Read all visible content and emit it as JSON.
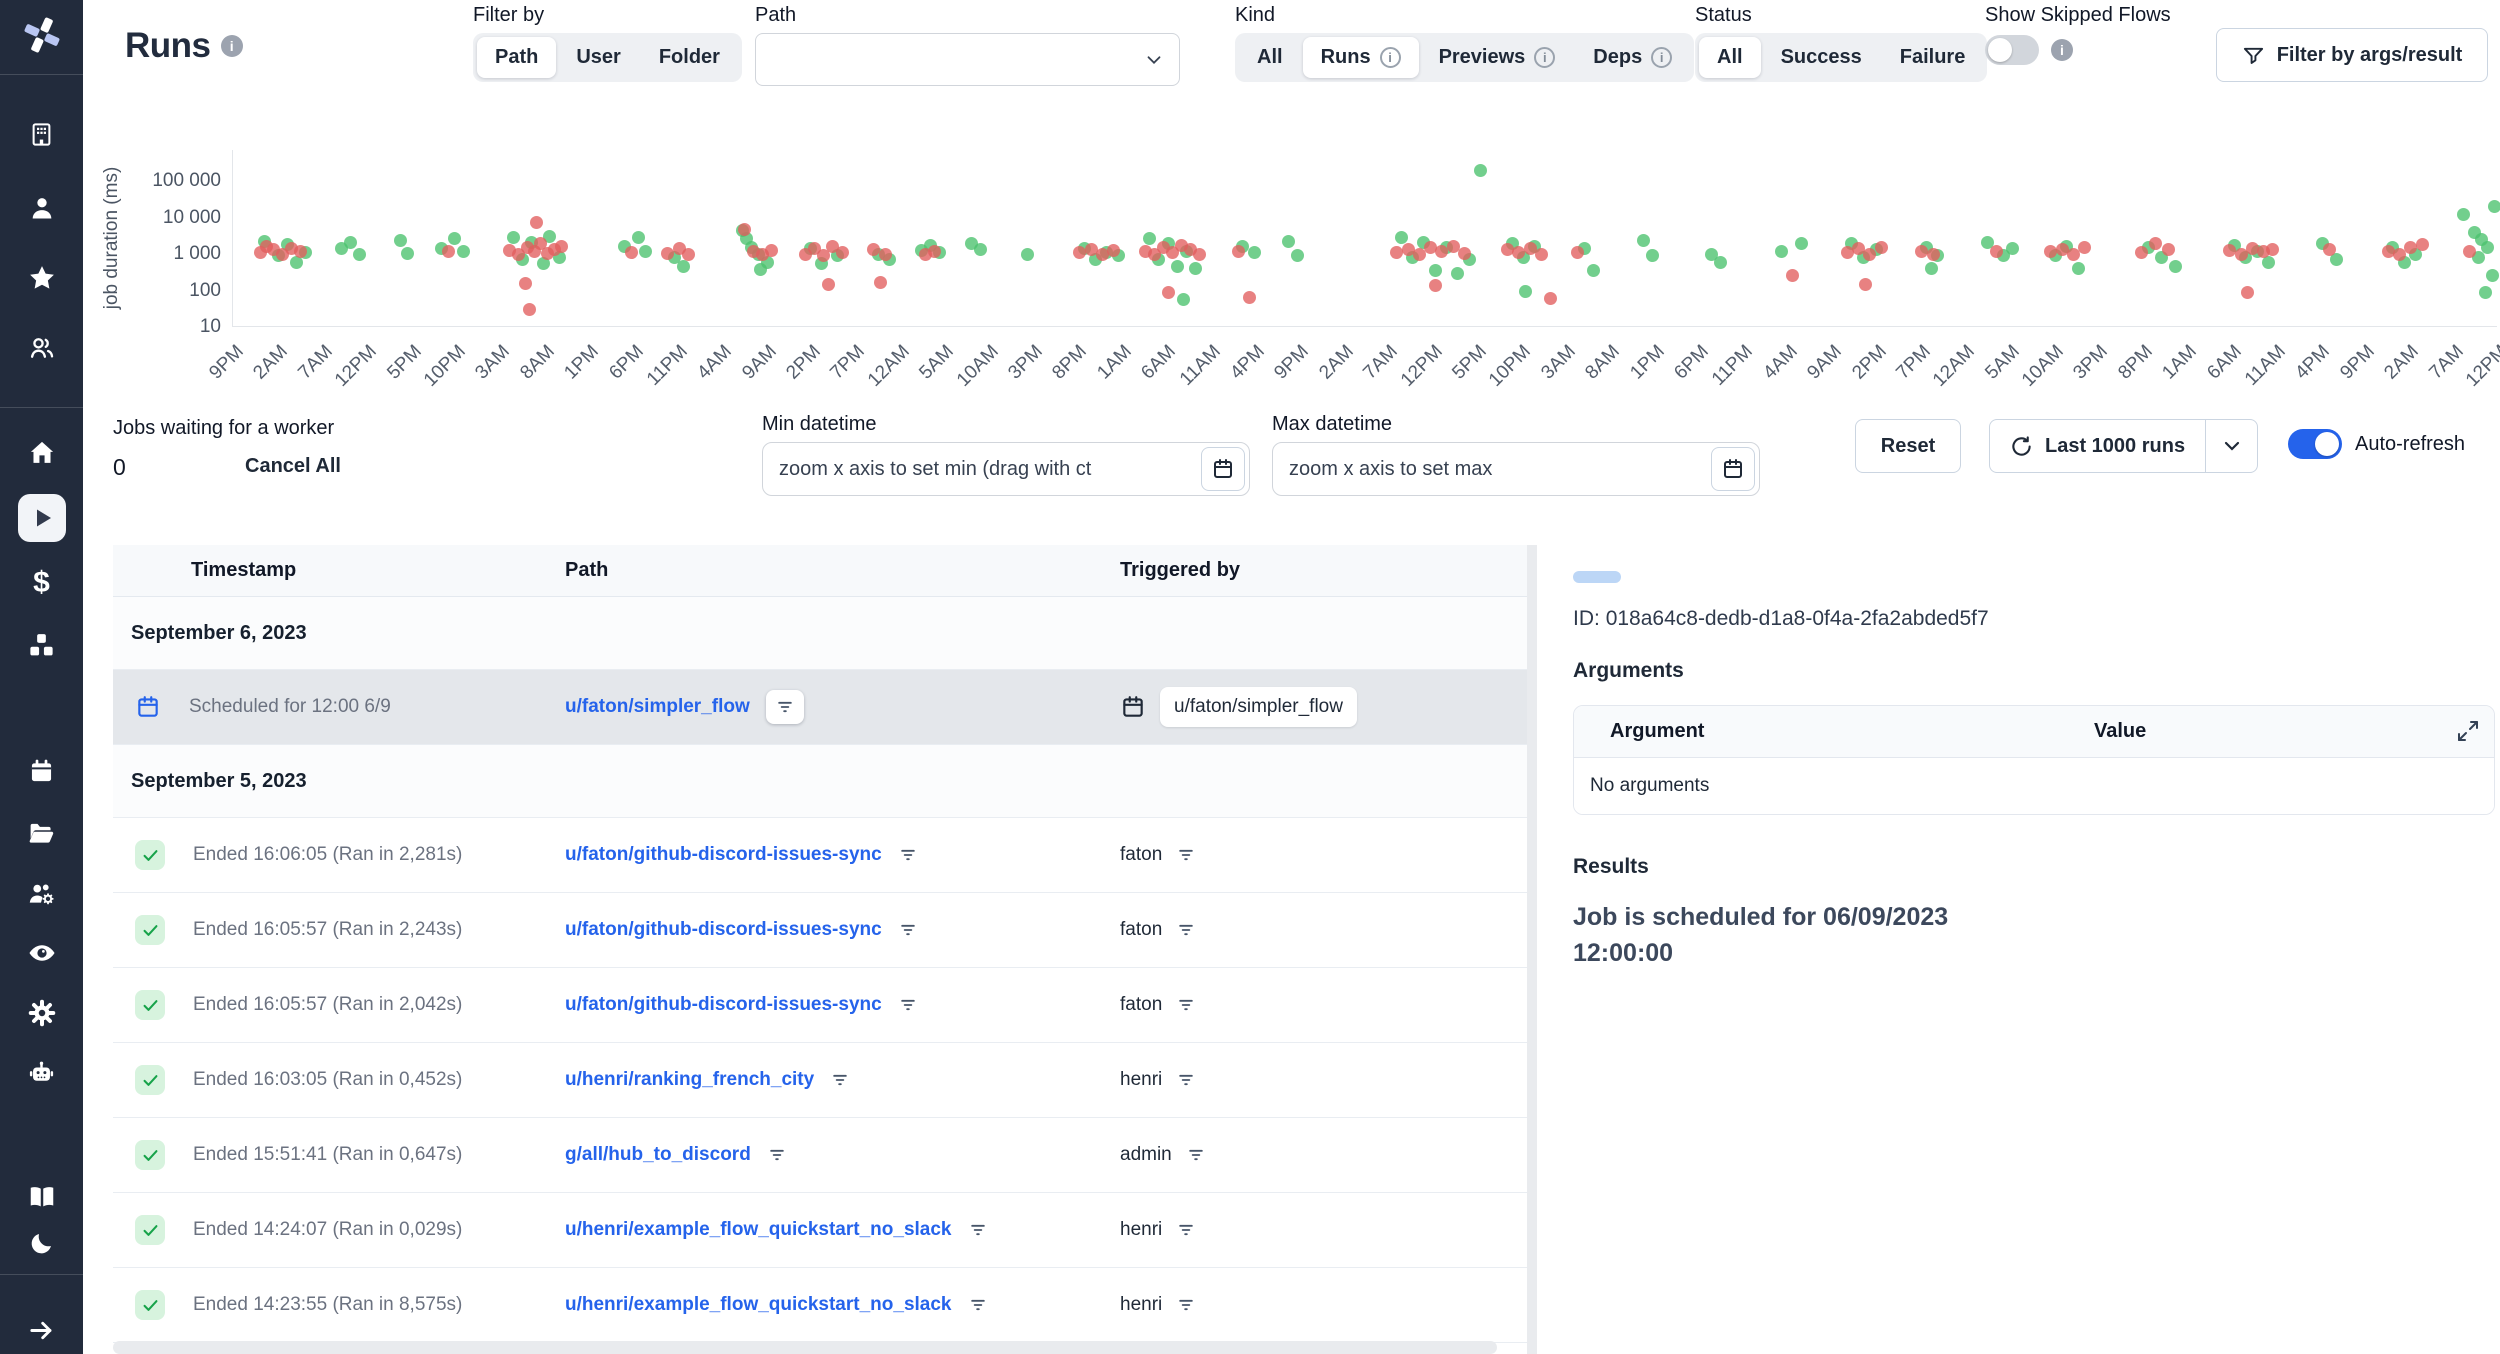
{
  "colors": {
    "accent": "#2563eb",
    "success_dot": "#4ac26d",
    "failure_dot": "#e25e5e",
    "sidebar": "#222b3c",
    "link": "#2563eb"
  },
  "sidebar": {
    "active_item": "runs",
    "icons": [
      "windmill-logo",
      "building",
      "user",
      "star",
      "user-group",
      "home",
      "play",
      "dollar-sign",
      "boxes",
      "calendar",
      "folder-open",
      "users-gear",
      "eye",
      "gear",
      "robot",
      "book",
      "moon",
      "arrow-right"
    ]
  },
  "header": {
    "title": "Runs",
    "filter_by": {
      "label": "Filter by",
      "options": [
        "Path",
        "User",
        "Folder"
      ],
      "selected": "Path"
    },
    "path_select": {
      "label": "Path",
      "value": ""
    },
    "kind": {
      "label": "Kind",
      "options": [
        "All",
        "Runs",
        "Previews",
        "Deps"
      ],
      "selected": "Runs"
    },
    "status": {
      "label": "Status",
      "options": [
        "All",
        "Success",
        "Failure"
      ],
      "selected": "All"
    },
    "show_skipped": {
      "label": "Show Skipped Flows",
      "enabled": false
    },
    "args_filter": {
      "label": "Filter by args/result"
    }
  },
  "chart_data": {
    "type": "scatter",
    "ylabel": "job duration (ms)",
    "yscale": "log",
    "yticks": [
      10,
      100,
      1000,
      10000,
      100000
    ],
    "ytick_labels": [
      "10",
      "100",
      "1 000",
      "10 000",
      "100 000"
    ],
    "ylim": [
      10,
      700000
    ],
    "x_unit": "percent_of_time_axis",
    "xtick_labels": [
      "9PM",
      "2AM",
      "7AM",
      "12PM",
      "5PM",
      "10PM",
      "3AM",
      "8AM",
      "1PM",
      "6PM",
      "11PM",
      "4AM",
      "9AM",
      "2PM",
      "7PM",
      "12AM",
      "5AM",
      "10AM",
      "3PM",
      "8PM",
      "1AM",
      "6AM",
      "11AM",
      "4PM",
      "9PM",
      "2AM",
      "7AM",
      "12PM",
      "5PM",
      "10PM",
      "3AM",
      "8AM",
      "1PM",
      "6PM",
      "11PM",
      "4AM",
      "9AM",
      "2PM",
      "7PM",
      "12AM",
      "5AM",
      "10AM",
      "3PM",
      "8PM",
      "1AM",
      "6AM",
      "11AM",
      "4PM",
      "9PM",
      "2AM",
      "7AM",
      "12PM"
    ],
    "series": [
      {
        "name": "success",
        "color": "#4ac26d",
        "points": [
          [
            1.4,
            2200
          ],
          [
            2.0,
            900
          ],
          [
            2.4,
            1800
          ],
          [
            2.8,
            600
          ],
          [
            3.2,
            1100
          ],
          [
            4.8,
            1400
          ],
          [
            5.2,
            2100
          ],
          [
            5.6,
            1000
          ],
          [
            7.4,
            2400
          ],
          [
            7.7,
            1050
          ],
          [
            9.2,
            1400
          ],
          [
            9.8,
            2600
          ],
          [
            10.2,
            1200
          ],
          [
            12.4,
            2800
          ],
          [
            12.8,
            700
          ],
          [
            13.2,
            2100
          ],
          [
            13.7,
            550
          ],
          [
            14.0,
            3000
          ],
          [
            14.4,
            800
          ],
          [
            17.3,
            1600
          ],
          [
            17.9,
            2800
          ],
          [
            18.2,
            1200
          ],
          [
            19.5,
            800
          ],
          [
            19.9,
            450
          ],
          [
            22.5,
            4500
          ],
          [
            22.7,
            2600
          ],
          [
            22.9,
            1500
          ],
          [
            23.2,
            1000
          ],
          [
            23.6,
            600
          ],
          [
            23.3,
            380
          ],
          [
            25.5,
            1400
          ],
          [
            26.0,
            550
          ],
          [
            26.7,
            900
          ],
          [
            28.5,
            950
          ],
          [
            29.0,
            700
          ],
          [
            30.4,
            1250
          ],
          [
            30.8,
            1700
          ],
          [
            31.2,
            1100
          ],
          [
            32.6,
            1900
          ],
          [
            33.0,
            1300
          ],
          [
            35.1,
            1000
          ],
          [
            37.6,
            1400
          ],
          [
            38.1,
            700
          ],
          [
            38.6,
            1100
          ],
          [
            39.1,
            900
          ],
          [
            40.5,
            2600
          ],
          [
            40.9,
            700
          ],
          [
            41.3,
            1900
          ],
          [
            41.7,
            450
          ],
          [
            42.1,
            1200
          ],
          [
            42.5,
            400
          ],
          [
            42.0,
            55
          ],
          [
            44.6,
            1600
          ],
          [
            45.1,
            1100
          ],
          [
            46.6,
            2200
          ],
          [
            47.0,
            900
          ],
          [
            51.6,
            2800
          ],
          [
            52.1,
            800
          ],
          [
            52.6,
            2100
          ],
          [
            53.1,
            350
          ],
          [
            53.6,
            1500
          ],
          [
            54.1,
            300
          ],
          [
            54.6,
            700
          ],
          [
            55.1,
            200000
          ],
          [
            56.5,
            2000
          ],
          [
            57.0,
            800
          ],
          [
            57.5,
            1600
          ],
          [
            57.1,
            95
          ],
          [
            59.7,
            1400
          ],
          [
            60.1,
            350
          ],
          [
            62.3,
            2300
          ],
          [
            62.7,
            900
          ],
          [
            65.3,
            1000
          ],
          [
            65.7,
            600
          ],
          [
            68.4,
            1200
          ],
          [
            69.3,
            1900
          ],
          [
            71.5,
            2000
          ],
          [
            72.0,
            800
          ],
          [
            72.6,
            1300
          ],
          [
            74.8,
            1500
          ],
          [
            75.3,
            900
          ],
          [
            75.0,
            400
          ],
          [
            77.5,
            2100
          ],
          [
            78.2,
            900
          ],
          [
            78.6,
            1400
          ],
          [
            80.5,
            900
          ],
          [
            81.0,
            1600
          ],
          [
            81.5,
            400
          ],
          [
            84.6,
            1500
          ],
          [
            85.2,
            800
          ],
          [
            85.8,
            450
          ],
          [
            88.4,
            1700
          ],
          [
            88.9,
            800
          ],
          [
            89.4,
            1200
          ],
          [
            89.9,
            600
          ],
          [
            92.3,
            2000
          ],
          [
            92.9,
            700
          ],
          [
            95.4,
            1500
          ],
          [
            95.9,
            600
          ],
          [
            96.4,
            1000
          ],
          [
            98.5,
            12000
          ],
          [
            99.0,
            4000
          ],
          [
            99.3,
            2500
          ],
          [
            99.6,
            1500
          ],
          [
            99.2,
            800
          ],
          [
            99.8,
            250
          ],
          [
            99.5,
            90
          ],
          [
            99.9,
            20000
          ]
        ]
      },
      {
        "name": "failure",
        "color": "#e25e5e",
        "points": [
          [
            1.2,
            1100
          ],
          [
            1.8,
            1300
          ],
          [
            2.2,
            950
          ],
          [
            2.6,
            1400
          ],
          [
            3.0,
            1200
          ],
          [
            1.5,
            1600
          ],
          [
            9.5,
            1150
          ],
          [
            12.2,
            1250
          ],
          [
            12.6,
            980
          ],
          [
            13.0,
            1500
          ],
          [
            13.3,
            1150
          ],
          [
            13.6,
            1900
          ],
          [
            13.9,
            1050
          ],
          [
            14.2,
            1300
          ],
          [
            14.5,
            1600
          ],
          [
            13.4,
            7500
          ],
          [
            12.9,
            160
          ],
          [
            13.1,
            30
          ],
          [
            17.6,
            1100
          ],
          [
            19.2,
            1050
          ],
          [
            19.7,
            1400
          ],
          [
            20.1,
            1000
          ],
          [
            22.6,
            4800
          ],
          [
            23.0,
            1150
          ],
          [
            23.4,
            1000
          ],
          [
            23.8,
            1250
          ],
          [
            25.3,
            1000
          ],
          [
            25.7,
            1450
          ],
          [
            26.1,
            900
          ],
          [
            26.5,
            1600
          ],
          [
            26.9,
            1100
          ],
          [
            26.3,
            150
          ],
          [
            28.3,
            1300
          ],
          [
            28.8,
            1000
          ],
          [
            28.6,
            170
          ],
          [
            30.6,
            1000
          ],
          [
            31.0,
            1150
          ],
          [
            37.4,
            1100
          ],
          [
            37.9,
            1350
          ],
          [
            38.4,
            1000
          ],
          [
            38.9,
            1250
          ],
          [
            40.3,
            1200
          ],
          [
            40.7,
            1000
          ],
          [
            41.1,
            1500
          ],
          [
            41.5,
            1100
          ],
          [
            41.9,
            1750
          ],
          [
            42.3,
            1300
          ],
          [
            42.7,
            1000
          ],
          [
            41.3,
            90
          ],
          [
            44.4,
            1200
          ],
          [
            44.9,
            65
          ],
          [
            51.4,
            1100
          ],
          [
            51.9,
            1300
          ],
          [
            52.4,
            1000
          ],
          [
            52.9,
            1500
          ],
          [
            53.4,
            1200
          ],
          [
            53.9,
            1600
          ],
          [
            54.4,
            1050
          ],
          [
            53.1,
            140
          ],
          [
            56.3,
            1300
          ],
          [
            56.8,
            1100
          ],
          [
            57.3,
            1450
          ],
          [
            57.8,
            1000
          ],
          [
            58.2,
            60
          ],
          [
            59.4,
            1100
          ],
          [
            68.9,
            250
          ],
          [
            71.3,
            1100
          ],
          [
            71.8,
            1400
          ],
          [
            72.3,
            1000
          ],
          [
            72.8,
            1500
          ],
          [
            72.1,
            150
          ],
          [
            74.6,
            1200
          ],
          [
            75.1,
            1000
          ],
          [
            77.9,
            1200
          ],
          [
            80.3,
            1150
          ],
          [
            80.8,
            1350
          ],
          [
            81.3,
            1000
          ],
          [
            81.8,
            1500
          ],
          [
            84.3,
            1100
          ],
          [
            84.9,
            2000
          ],
          [
            85.5,
            1300
          ],
          [
            88.2,
            1250
          ],
          [
            88.7,
            1000
          ],
          [
            89.2,
            1400
          ],
          [
            89.7,
            1150
          ],
          [
            90.1,
            1300
          ],
          [
            89.0,
            90
          ],
          [
            92.6,
            1300
          ],
          [
            95.2,
            1200
          ],
          [
            95.7,
            1000
          ],
          [
            96.2,
            1500
          ],
          [
            96.7,
            1800
          ],
          [
            98.8,
            1200
          ]
        ]
      }
    ]
  },
  "controls": {
    "jobs_waiting": {
      "label": "Jobs waiting for a worker",
      "count": "0",
      "cancel_label": "Cancel All"
    },
    "min_datetime": {
      "label": "Min datetime",
      "value": "zoom x axis to set min (drag with ct"
    },
    "max_datetime": {
      "label": "Max datetime",
      "value": "zoom x axis to set max"
    },
    "reset_label": "Reset",
    "runs_limit": {
      "label": "Last 1000 runs"
    },
    "auto_refresh": {
      "label": "Auto-refresh",
      "enabled": true
    }
  },
  "table": {
    "columns": [
      "Timestamp",
      "Path",
      "Triggered by"
    ],
    "rows": [
      {
        "type": "date",
        "label": "September 6, 2023"
      },
      {
        "type": "scheduled",
        "selected": true,
        "timestamp": "Scheduled for 12:00 6/9",
        "path": "u/faton/simpler_flow",
        "triggered_by": "u/faton/simpler_flow"
      },
      {
        "type": "date",
        "label": "September 5, 2023"
      },
      {
        "type": "run",
        "status": "success",
        "timestamp": "Ended 16:06:05 (Ran in 2,281s)",
        "path": "u/faton/github-discord-issues-sync",
        "triggered_by": "faton"
      },
      {
        "type": "run",
        "status": "success",
        "timestamp": "Ended 16:05:57 (Ran in 2,243s)",
        "path": "u/faton/github-discord-issues-sync",
        "triggered_by": "faton"
      },
      {
        "type": "run",
        "status": "success",
        "timestamp": "Ended 16:05:57 (Ran in 2,042s)",
        "path": "u/faton/github-discord-issues-sync",
        "triggered_by": "faton"
      },
      {
        "type": "run",
        "status": "success",
        "timestamp": "Ended 16:03:05 (Ran in 0,452s)",
        "path": "u/henri/ranking_french_city",
        "triggered_by": "henri"
      },
      {
        "type": "run",
        "status": "success",
        "timestamp": "Ended 15:51:41 (Ran in 0,647s)",
        "path": "g/all/hub_to_discord",
        "triggered_by": "admin"
      },
      {
        "type": "run",
        "status": "success",
        "timestamp": "Ended 14:24:07 (Ran in 0,029s)",
        "path": "u/henri/example_flow_quickstart_no_slack",
        "triggered_by": "henri"
      },
      {
        "type": "run",
        "status": "success",
        "timestamp": "Ended 14:23:55 (Ran in 8,575s)",
        "path": "u/henri/example_flow_quickstart_no_slack",
        "triggered_by": "henri"
      }
    ]
  },
  "details": {
    "id_label": "ID:",
    "id_value": "018a64c8-dedb-d1a8-0f4a-2fa2abded5f7",
    "arguments": {
      "title": "Arguments",
      "columns": [
        "Argument",
        "Value"
      ],
      "empty": "No arguments"
    },
    "results": {
      "title": "Results",
      "text": "Job is scheduled for 06/09/2023 12:00:00"
    }
  }
}
